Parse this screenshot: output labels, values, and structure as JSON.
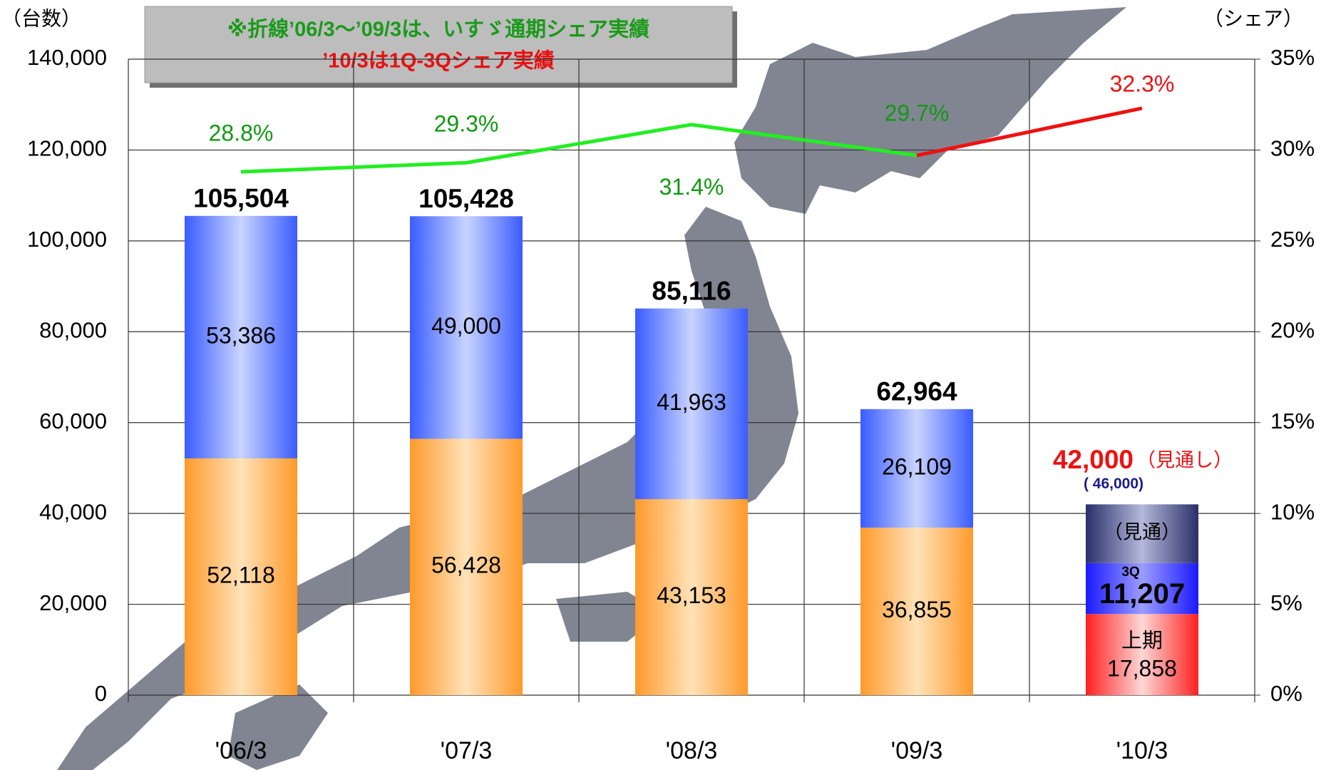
{
  "chart_data": {
    "type": "bar",
    "stacked": true,
    "annotation_lines": [
      "※折線’06/3～’09/3は、いすゞ通期シェア実績",
      "’10/3は1Q-3Qシェア実績"
    ],
    "ylabel": "（台数）",
    "y2label": "（シェア）",
    "categories": [
      "'06/3",
      "'07/3",
      "'08/3",
      "'09/3",
      "'10/3"
    ],
    "series": [
      {
        "color": "#ff9a2a",
        "values": [
          52118,
          56428,
          43153,
          36855,
          null
        ],
        "value_labels": [
          "52,118",
          "56,428",
          "43,153",
          "36,855",
          null
        ]
      },
      {
        "color": "#3a5cff",
        "values": [
          53386,
          49000,
          41963,
          26109,
          null
        ],
        "value_labels": [
          "53,386",
          "49,000",
          "41,963",
          "26,109",
          null
        ]
      },
      {
        "name": "上期",
        "color": "#ff2020",
        "values": [
          null,
          null,
          null,
          null,
          17858
        ],
        "value_labels": [
          null,
          null,
          null,
          null,
          "17,858"
        ]
      },
      {
        "name": "3Q",
        "color": "#1a1aff",
        "values": [
          null,
          null,
          null,
          null,
          11207
        ],
        "value_labels": [
          null,
          null,
          null,
          null,
          "11,207"
        ]
      },
      {
        "name": "（見通）",
        "color": "#2a2f6a",
        "values": [
          null,
          null,
          null,
          null,
          12935
        ]
      }
    ],
    "totals": [
      105504,
      105428,
      85116,
      62964,
      42000
    ],
    "total_labels": [
      "105,504",
      "105,428",
      "85,116",
      "62,964",
      "42,000"
    ],
    "forecast_note": "（見通し）",
    "forecast_prev": "( 46,000)",
    "lines": [
      {
        "color": "#22ee22",
        "label_color": "#119911",
        "axis": "y2",
        "values": [
          28.8,
          29.3,
          31.4,
          29.7,
          null
        ],
        "value_labels": [
          "28.8%",
          "29.3%",
          "31.4%",
          "29.7%",
          null
        ]
      },
      {
        "color": "#ee1111",
        "label_color": "#ee1111",
        "axis": "y2",
        "values": [
          null,
          null,
          null,
          29.7,
          32.3
        ],
        "value_labels": [
          null,
          null,
          null,
          null,
          "32.3%"
        ]
      }
    ],
    "ylim": [
      0,
      140000
    ],
    "yticks": [
      0,
      {
        "value": 20000,
        "label": "20,000"
      },
      {
        "value": 40000,
        "label": "40,000"
      },
      {
        "value": 60000,
        "label": "60,000"
      },
      {
        "value": 80000,
        "label": "80,000"
      },
      {
        "value": 100000,
        "label": "100,000"
      },
      {
        "value": 120000,
        "label": "120,000"
      },
      {
        "value": 140000,
        "label": "140,000"
      }
    ],
    "y2lim": [
      0,
      35
    ],
    "y2ticks": [
      {
        "value": 0,
        "label": "0%"
      },
      {
        "value": 5,
        "label": "5%"
      },
      {
        "value": 10,
        "label": "10%"
      },
      {
        "value": 15,
        "label": "15%"
      },
      {
        "value": 20,
        "label": "20%"
      },
      {
        "value": 25,
        "label": "25%"
      },
      {
        "value": 30,
        "label": "30%"
      },
      {
        "value": 35,
        "label": "35%"
      }
    ],
    "grid": true
  }
}
